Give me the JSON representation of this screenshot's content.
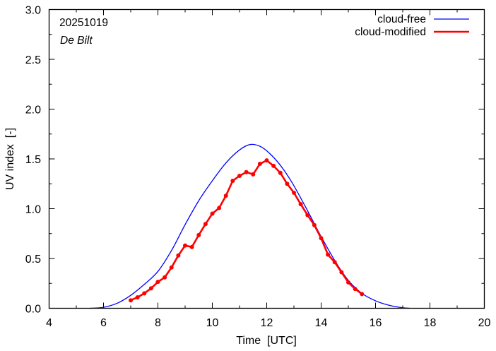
{
  "chart_data": {
    "type": "line",
    "annotations": {
      "date": "20251019",
      "location": "De Bilt"
    },
    "xlabel": "Time  [UTC]",
    "ylabel": "UV index  [-]",
    "xlim": [
      4,
      20
    ],
    "ylim": [
      0.0,
      3.0
    ],
    "x_ticks": [
      4,
      6,
      8,
      10,
      12,
      14,
      16,
      18,
      20
    ],
    "x_tick_labels": [
      "4",
      "6",
      "8",
      "10",
      "12",
      "14",
      "16",
      "18",
      "20"
    ],
    "y_ticks": [
      0.0,
      0.5,
      1.0,
      1.5,
      2.0,
      2.5,
      3.0
    ],
    "y_tick_labels": [
      "0.0",
      "0.5",
      "1.0",
      "1.5",
      "2.0",
      "2.5",
      "3.0"
    ],
    "grid": false,
    "legend_position": "top-right",
    "series": [
      {
        "name": "cloud-free",
        "color": "#0000ff",
        "marker": "none",
        "x": [
          5.5,
          6.0,
          6.5,
          7.0,
          7.5,
          8.0,
          8.5,
          9.0,
          9.5,
          10.0,
          10.5,
          11.0,
          11.4,
          11.8,
          12.2,
          12.6,
          13.0,
          13.5,
          14.0,
          14.5,
          15.0,
          15.5,
          16.0,
          16.5,
          17.0,
          17.25
        ],
        "values": [
          0.0,
          0.01,
          0.05,
          0.13,
          0.24,
          0.37,
          0.58,
          0.84,
          1.08,
          1.28,
          1.46,
          1.59,
          1.645,
          1.62,
          1.53,
          1.4,
          1.23,
          0.98,
          0.72,
          0.48,
          0.28,
          0.15,
          0.075,
          0.03,
          0.005,
          0.0
        ]
      },
      {
        "name": "cloud-modified",
        "color": "#ff0000",
        "marker": "circle",
        "x": [
          7.0,
          7.25,
          7.5,
          7.75,
          8.0,
          8.25,
          8.5,
          8.75,
          9.0,
          9.25,
          9.5,
          9.75,
          10.0,
          10.25,
          10.5,
          10.75,
          11.0,
          11.25,
          11.5,
          11.75,
          12.0,
          12.25,
          12.5,
          12.75,
          13.0,
          13.25,
          13.5,
          13.75,
          14.0,
          14.25,
          14.5,
          14.75,
          15.0,
          15.25,
          15.5
        ],
        "values": [
          0.08,
          0.11,
          0.15,
          0.2,
          0.265,
          0.31,
          0.41,
          0.53,
          0.63,
          0.615,
          0.735,
          0.846,
          0.95,
          1.007,
          1.13,
          1.28,
          1.33,
          1.367,
          1.345,
          1.45,
          1.485,
          1.43,
          1.36,
          1.25,
          1.16,
          1.045,
          0.936,
          0.835,
          0.704,
          0.539,
          0.463,
          0.362,
          0.26,
          0.194,
          0.143
        ]
      }
    ]
  }
}
